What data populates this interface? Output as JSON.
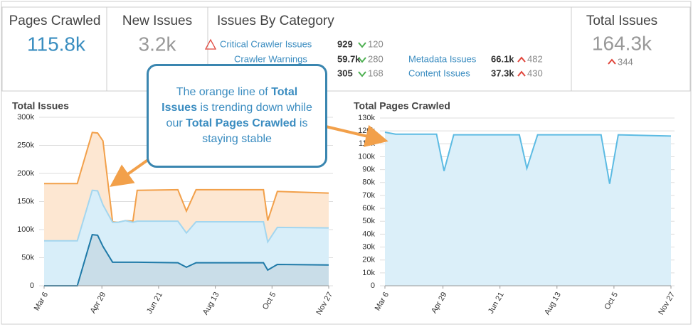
{
  "header": {
    "pages_crawled": {
      "label": "Pages Crawled",
      "value": "115.8k"
    },
    "new_issues": {
      "label": "New Issues",
      "value": "3.2k"
    },
    "issues_by_category": {
      "title": "Issues By Category",
      "items": [
        {
          "label": "Critical Crawler Issues",
          "value": "929",
          "change": "120",
          "direction": "down"
        },
        {
          "label": "Crawler Warnings",
          "value": "59.7k",
          "change": "280",
          "direction": "down"
        },
        {
          "value": "305",
          "change": "168",
          "direction": "down"
        },
        {
          "label": "Metadata Issues",
          "value": "66.1k",
          "change": "482",
          "direction": "up"
        },
        {
          "label": "Content Issues",
          "value": "37.3k",
          "change": "430",
          "direction": "up"
        }
      ]
    },
    "total_issues": {
      "label": "Total Issues",
      "value": "164.3k",
      "change": "344",
      "direction": "up"
    }
  },
  "callout": {
    "segments": [
      {
        "text": "The orange line of ",
        "bold": false
      },
      {
        "text": "Total Issues",
        "bold": true
      },
      {
        "text": " is trending down while our ",
        "bold": false
      },
      {
        "text": "Total Pages Crawled",
        "bold": true
      },
      {
        "text": " is staying stable",
        "bold": false
      }
    ]
  },
  "chart_data": [
    {
      "type": "area",
      "title": "Total Issues",
      "x": [
        0,
        31,
        45,
        50,
        55,
        64,
        69,
        76,
        83,
        87,
        125,
        133,
        142,
        205,
        209,
        218,
        266
      ],
      "xlim": [
        0,
        266
      ],
      "xticks": [
        {
          "value": 0,
          "label": "Mar 6"
        },
        {
          "value": 54,
          "label": "Apr 29"
        },
        {
          "value": 107,
          "label": "Jun 21"
        },
        {
          "value": 160,
          "label": "Aug 13"
        },
        {
          "value": 213,
          "label": "Oct 5"
        },
        {
          "value": 266,
          "label": "Nov 27"
        }
      ],
      "ylim": [
        0,
        300000
      ],
      "yticks": [
        0,
        {
          "value": 50000,
          "label": "50k"
        },
        {
          "value": 100000,
          "label": "100k"
        },
        {
          "value": 150000,
          "label": "150k"
        },
        {
          "value": 200000,
          "label": "200k"
        },
        {
          "value": 250000,
          "label": "250k"
        },
        {
          "value": 300000,
          "label": "300k"
        }
      ],
      "grid": true,
      "series": [
        {
          "color": "#f2a04a",
          "fill": "#fde7d2",
          "values": [
            182000,
            182000,
            273000,
            272000,
            258000,
            114000,
            113000,
            116000,
            115000,
            170000,
            171000,
            133000,
            171000,
            171000,
            116000,
            168000,
            165000
          ]
        },
        {
          "color": "#a3d6ef",
          "fill": "#d8eef9",
          "values": [
            80000,
            80000,
            170000,
            169000,
            144000,
            113000,
            113000,
            116000,
            113000,
            115000,
            115000,
            94000,
            114000,
            114000,
            78000,
            104000,
            103000
          ]
        },
        {
          "color": "#1f7aa8",
          "fill": "#c9dde8",
          "values": [
            0,
            0,
            91000,
            90000,
            70000,
            42000,
            42000,
            42000,
            42000,
            42000,
            41000,
            33000,
            41000,
            41000,
            28000,
            38000,
            37000
          ]
        }
      ]
    },
    {
      "type": "area",
      "title": "Total Pages Crawled",
      "x": [
        0,
        10,
        48,
        55,
        64,
        125,
        132,
        142,
        201,
        209,
        217,
        266
      ],
      "xlim": [
        0,
        266
      ],
      "xticks": [
        {
          "value": 0,
          "label": "Mar 6"
        },
        {
          "value": 54,
          "label": "Apr 29"
        },
        {
          "value": 107,
          "label": "Jun 21"
        },
        {
          "value": 160,
          "label": "Aug 13"
        },
        {
          "value": 213,
          "label": "Oct 5"
        },
        {
          "value": 266,
          "label": "Nov 27"
        }
      ],
      "ylim": [
        0,
        130000
      ],
      "yticks": [
        0,
        {
          "value": 10000,
          "label": "10k"
        },
        {
          "value": 20000,
          "label": "20k"
        },
        {
          "value": 30000,
          "label": "30k"
        },
        {
          "value": 40000,
          "label": "40k"
        },
        {
          "value": 50000,
          "label": "50k"
        },
        {
          "value": 60000,
          "label": "60k"
        },
        {
          "value": 70000,
          "label": "70k"
        },
        {
          "value": 80000,
          "label": "80k"
        },
        {
          "value": 90000,
          "label": "90k"
        },
        {
          "value": 100000,
          "label": "100k"
        },
        {
          "value": 110000,
          "label": "110k"
        },
        {
          "value": 120000,
          "label": "120k"
        },
        {
          "value": 130000,
          "label": "130k"
        }
      ],
      "grid": true,
      "series": [
        {
          "color": "#5cbbe3",
          "fill": "#dbeff9",
          "values": [
            119000,
            117500,
            117500,
            89000,
            117000,
            117000,
            91000,
            117000,
            117000,
            79000,
            117000,
            116000
          ]
        }
      ]
    }
  ]
}
